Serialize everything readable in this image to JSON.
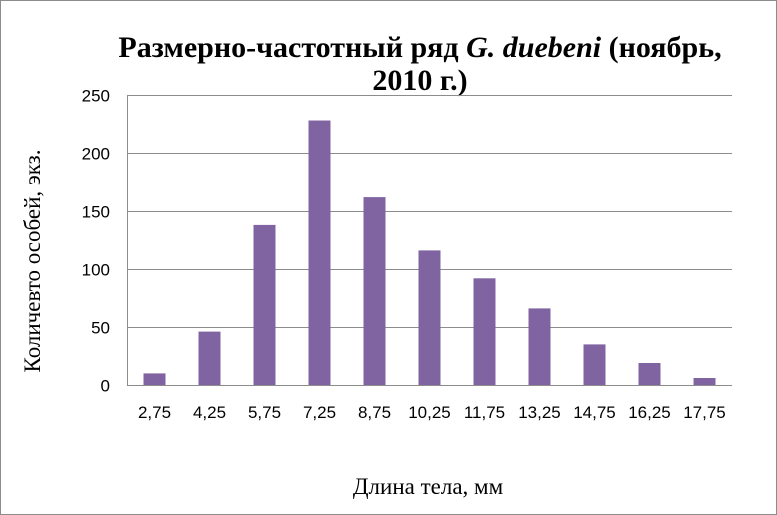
{
  "chart_data": {
    "type": "bar",
    "title_parts": [
      "Размерно-частотный ряд ",
      "G. duebeni",
      " (ноябрь,",
      "2010 г.)"
    ],
    "title": "Размерно-частотный ряд G. duebeni (ноябрь, 2010 г.)",
    "xlabel": "Длина тела, мм",
    "ylabel": "Количевто особей, экз.",
    "categories": [
      "2,75",
      "4,25",
      "5,75",
      "7,25",
      "8,75",
      "10,25",
      "11,75",
      "13,25",
      "14,75",
      "16,25",
      "17,75"
    ],
    "values": [
      10,
      46,
      138,
      228,
      162,
      116,
      92,
      66,
      35,
      19,
      6
    ],
    "ylim": [
      0,
      250
    ],
    "yticks": [
      "0",
      "50",
      "100",
      "150",
      "200",
      "250"
    ],
    "grid": true,
    "legend": "none",
    "bar_color": "#8064a2"
  }
}
